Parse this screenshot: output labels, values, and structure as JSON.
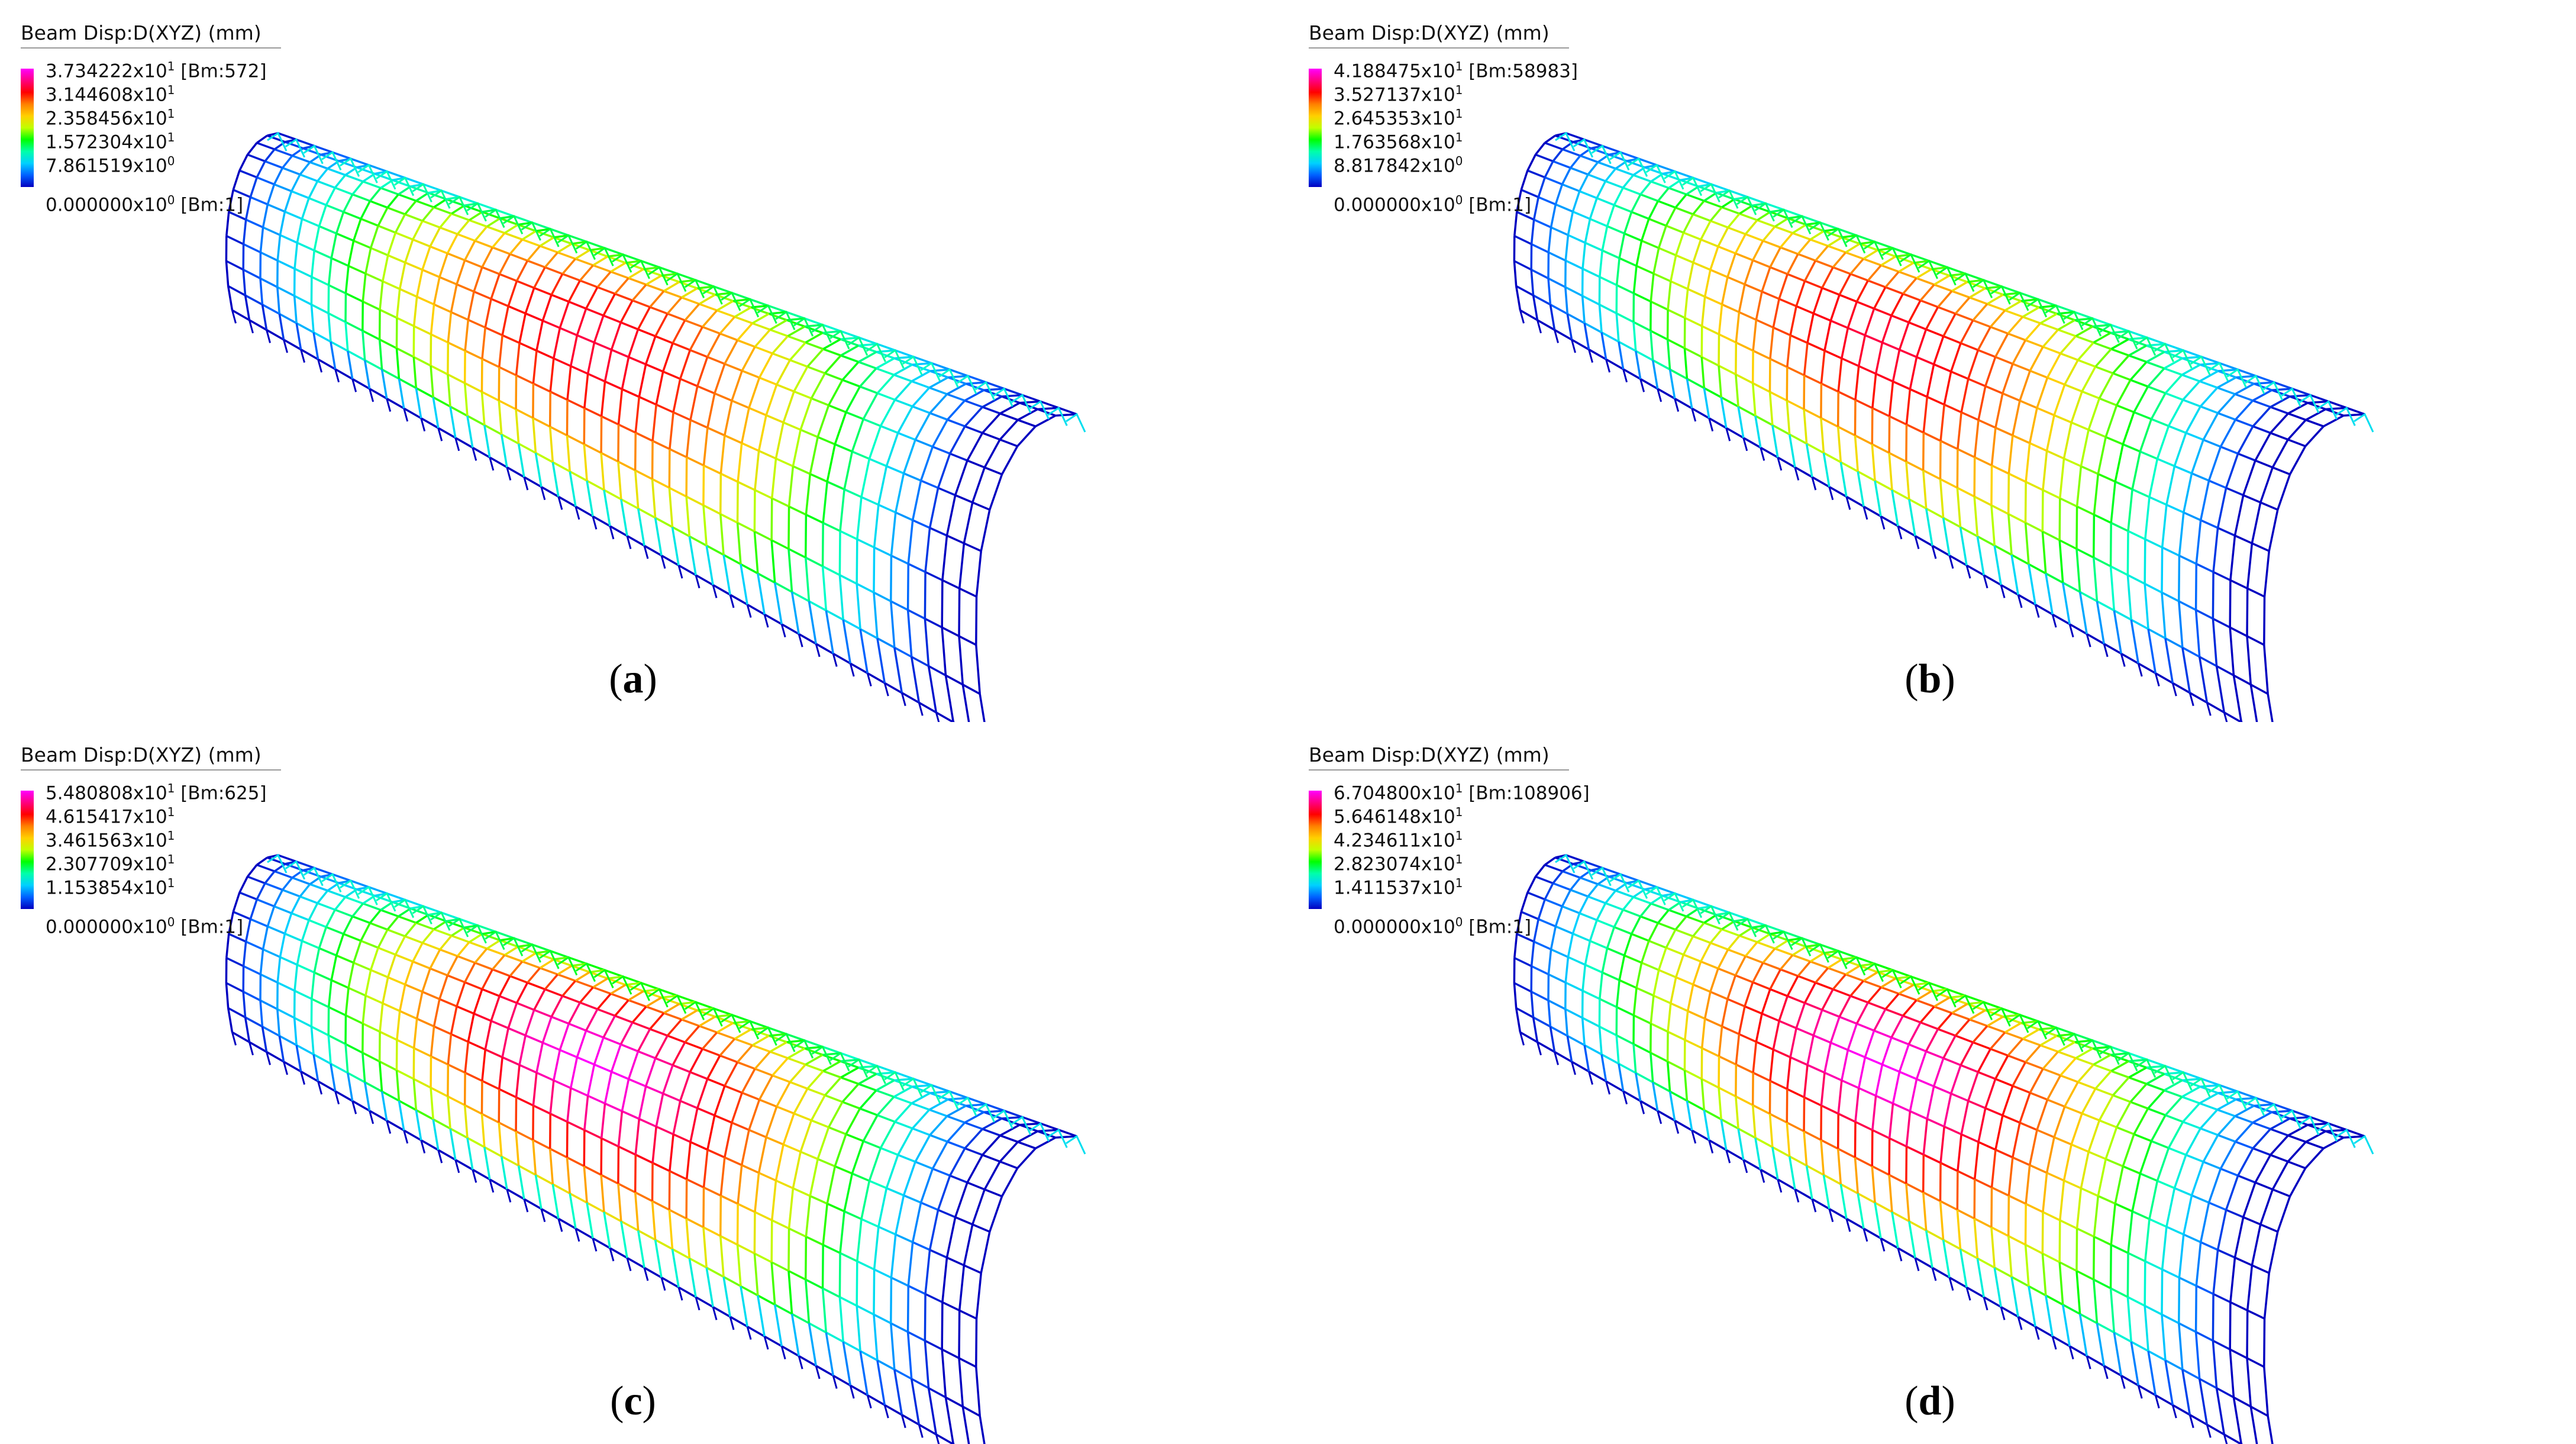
{
  "panels": [
    {
      "label": "a",
      "legend": {
        "title": "Beam Disp:D(XYZ)  (mm)",
        "entries": [
          {
            "mantissa": "3.734222x10",
            "exp": "1",
            "suffix": " [Bm:572]"
          },
          {
            "mantissa": "3.144608x10",
            "exp": "1",
            "suffix": ""
          },
          {
            "mantissa": "2.358456x10",
            "exp": "1",
            "suffix": ""
          },
          {
            "mantissa": "1.572304x10",
            "exp": "1",
            "suffix": ""
          },
          {
            "mantissa": "7.861519x10",
            "exp": "0",
            "suffix": ""
          },
          {
            "mantissa": "0.000000x10",
            "exp": "0",
            "suffix": " [Bm:1]"
          }
        ]
      },
      "colormap": {
        "high": "#ff00ff",
        "low": "#0000c0"
      },
      "max_band": 0.9
    },
    {
      "label": "b",
      "legend": {
        "title": "Beam Disp:D(XYZ)  (mm)",
        "entries": [
          {
            "mantissa": "4.188475x10",
            "exp": "1",
            "suffix": " [Bm:58983]"
          },
          {
            "mantissa": "3.527137x10",
            "exp": "1",
            "suffix": ""
          },
          {
            "mantissa": "2.645353x10",
            "exp": "1",
            "suffix": ""
          },
          {
            "mantissa": "1.763568x10",
            "exp": "1",
            "suffix": ""
          },
          {
            "mantissa": "8.817842x10",
            "exp": "0",
            "suffix": ""
          },
          {
            "mantissa": "0.000000x10",
            "exp": "0",
            "suffix": " [Bm:1]"
          }
        ]
      },
      "colormap": {
        "high": "#ff00ff",
        "low": "#0000c0"
      },
      "max_band": 0.9
    },
    {
      "label": "c",
      "legend": {
        "title": "Beam Disp:D(XYZ)  (mm)",
        "entries": [
          {
            "mantissa": "5.480808x10",
            "exp": "1",
            "suffix": " [Bm:625]"
          },
          {
            "mantissa": "4.615417x10",
            "exp": "1",
            "suffix": ""
          },
          {
            "mantissa": "3.461563x10",
            "exp": "1",
            "suffix": ""
          },
          {
            "mantissa": "2.307709x10",
            "exp": "1",
            "suffix": ""
          },
          {
            "mantissa": "1.153854x10",
            "exp": "1",
            "suffix": ""
          },
          {
            "mantissa": "0.000000x10",
            "exp": "0",
            "suffix": " [Bm:1]"
          }
        ]
      },
      "colormap": {
        "high": "#ff00ff",
        "low": "#0000c0"
      },
      "max_band": 1.0
    },
    {
      "label": "d",
      "legend": {
        "title": "Beam Disp:D(XYZ)  (mm)",
        "entries": [
          {
            "mantissa": "6.704800x10",
            "exp": "1",
            "suffix": " [Bm:108906]"
          },
          {
            "mantissa": "5.646148x10",
            "exp": "1",
            "suffix": ""
          },
          {
            "mantissa": "4.234611x10",
            "exp": "1",
            "suffix": ""
          },
          {
            "mantissa": "2.823074x10",
            "exp": "1",
            "suffix": ""
          },
          {
            "mantissa": "1.411537x10",
            "exp": "1",
            "suffix": ""
          },
          {
            "mantissa": "0.000000x10",
            "exp": "0",
            "suffix": " [Bm:1]"
          }
        ]
      },
      "colormap": {
        "high": "#ff00ff",
        "low": "#0000c0"
      },
      "max_band": 1.0
    }
  ]
}
